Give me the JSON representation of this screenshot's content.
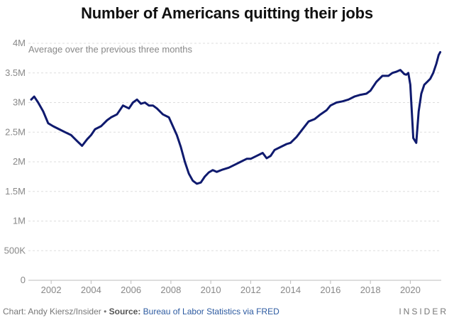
{
  "chart_data": {
    "type": "line",
    "title": "Number of Americans quitting their jobs",
    "subtitle": "Average over the previous three months",
    "xlabel": "",
    "ylabel": "",
    "xlim": [
      2001.0,
      2021.55
    ],
    "ylim": [
      0,
      4000000
    ],
    "y_ticks": [
      {
        "value": 0,
        "label": "0"
      },
      {
        "value": 500000,
        "label": "500K"
      },
      {
        "value": 1000000,
        "label": "1M"
      },
      {
        "value": 1500000,
        "label": "1.5M"
      },
      {
        "value": 2000000,
        "label": "2M"
      },
      {
        "value": 2500000,
        "label": "2.5M"
      },
      {
        "value": 3000000,
        "label": "3M"
      },
      {
        "value": 3500000,
        "label": "3.5M"
      },
      {
        "value": 4000000,
        "label": "4M"
      }
    ],
    "x_ticks": [
      {
        "value": 2002,
        "label": "2002"
      },
      {
        "value": 2004,
        "label": "2004"
      },
      {
        "value": 2006,
        "label": "2006"
      },
      {
        "value": 2008,
        "label": "2008"
      },
      {
        "value": 2010,
        "label": "2010"
      },
      {
        "value": 2012,
        "label": "2012"
      },
      {
        "value": 2014,
        "label": "2014"
      },
      {
        "value": 2016,
        "label": "2016"
      },
      {
        "value": 2018,
        "label": "2018"
      },
      {
        "value": 2020,
        "label": "2020"
      }
    ],
    "grid": true,
    "series": [
      {
        "color": "#0f1a6e",
        "x": [
          2001.0,
          2001.15,
          2001.35,
          2001.6,
          2001.85,
          2002.1,
          2002.4,
          2002.7,
          2003.0,
          2003.3,
          2003.55,
          2003.8,
          2004.0,
          2004.2,
          2004.5,
          2004.8,
          2005.0,
          2005.3,
          2005.6,
          2005.9,
          2006.1,
          2006.3,
          2006.5,
          2006.7,
          2006.9,
          2007.1,
          2007.3,
          2007.6,
          2007.9,
          2008.1,
          2008.3,
          2008.5,
          2008.7,
          2008.9,
          2009.1,
          2009.3,
          2009.5,
          2009.7,
          2009.9,
          2010.1,
          2010.3,
          2010.6,
          2010.9,
          2011.2,
          2011.5,
          2011.8,
          2012.0,
          2012.3,
          2012.6,
          2012.8,
          2013.0,
          2013.2,
          2013.5,
          2013.8,
          2014.0,
          2014.3,
          2014.6,
          2014.9,
          2015.2,
          2015.5,
          2015.8,
          2016.0,
          2016.3,
          2016.6,
          2016.9,
          2017.2,
          2017.5,
          2017.8,
          2018.0,
          2018.3,
          2018.6,
          2018.9,
          2019.1,
          2019.3,
          2019.5,
          2019.7,
          2019.8,
          2019.9,
          2020.0,
          2020.15,
          2020.3,
          2020.42,
          2020.55,
          2020.7,
          2020.85,
          2021.0,
          2021.15,
          2021.3,
          2021.42,
          2021.5
        ],
        "values": [
          3050000,
          3100000,
          3000000,
          2850000,
          2650000,
          2600000,
          2550000,
          2500000,
          2450000,
          2350000,
          2270000,
          2380000,
          2450000,
          2550000,
          2600000,
          2700000,
          2750000,
          2800000,
          2950000,
          2900000,
          3000000,
          3050000,
          2980000,
          3000000,
          2950000,
          2950000,
          2900000,
          2800000,
          2750000,
          2600000,
          2450000,
          2250000,
          2000000,
          1800000,
          1680000,
          1630000,
          1650000,
          1750000,
          1820000,
          1860000,
          1830000,
          1870000,
          1900000,
          1950000,
          2000000,
          2050000,
          2050000,
          2100000,
          2150000,
          2060000,
          2100000,
          2200000,
          2250000,
          2300000,
          2320000,
          2420000,
          2550000,
          2680000,
          2720000,
          2800000,
          2870000,
          2950000,
          3000000,
          3020000,
          3050000,
          3100000,
          3130000,
          3150000,
          3200000,
          3350000,
          3450000,
          3450000,
          3500000,
          3520000,
          3550000,
          3480000,
          3470000,
          3500000,
          3300000,
          2400000,
          2320000,
          2850000,
          3150000,
          3300000,
          3350000,
          3400000,
          3500000,
          3650000,
          3800000,
          3850000
        ]
      }
    ]
  },
  "footer": {
    "chart_prefix": "Chart:",
    "author": "Andy Kiersz/Insider",
    "bullet": "•",
    "source_prefix": "Source:",
    "source": "Bureau of Labor Statistics via FRED",
    "brand": "INSIDER"
  },
  "colors": {
    "line": "#0f1a6e",
    "grid": "#dddddd",
    "axis_label": "#888888",
    "source_link": "#2c5aa0"
  }
}
